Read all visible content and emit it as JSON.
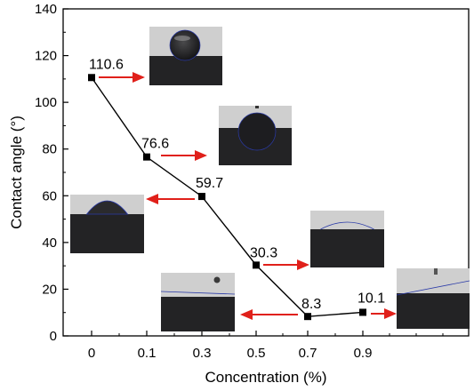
{
  "chart_data": {
    "type": "line",
    "xlabel": "Concentration (%)",
    "ylabel": "Contact angle (°)",
    "categories": [
      "0",
      "0.1",
      "0.3",
      "0.5",
      "0.7",
      "0.9"
    ],
    "values": [
      110.6,
      76.6,
      59.7,
      30.3,
      8.3,
      10.1
    ],
    "data_labels": [
      "110.6",
      "76.6",
      "59.7",
      "30.3",
      "8.3",
      "10.1"
    ],
    "ylim": [
      0,
      140
    ],
    "yticks": [
      0,
      20,
      40,
      60,
      80,
      100,
      120,
      140
    ],
    "ytick_labels": [
      "0",
      "20",
      "40",
      "60",
      "80",
      "100",
      "120",
      "140"
    ],
    "grid": false,
    "legend": "none",
    "colors": {
      "line": "#000000",
      "marker": "#000000",
      "arrow": "#e0201a",
      "photo_background": "#cfcfcf",
      "photo_substrate": "#232325",
      "droplet_edge": "#2a3aa8"
    },
    "annotations": [
      {
        "point": "0",
        "arrow": "right",
        "inset": "droplet photo"
      },
      {
        "point": "0.1",
        "arrow": "right",
        "inset": "droplet photo"
      },
      {
        "point": "0.3",
        "arrow": "left",
        "inset": "droplet photo"
      },
      {
        "point": "0.5",
        "arrow": "right",
        "inset": "droplet photo"
      },
      {
        "point": "0.7",
        "arrow": "left",
        "inset": "droplet photo"
      },
      {
        "point": "0.9",
        "arrow": "right",
        "inset": "droplet photo"
      }
    ]
  }
}
